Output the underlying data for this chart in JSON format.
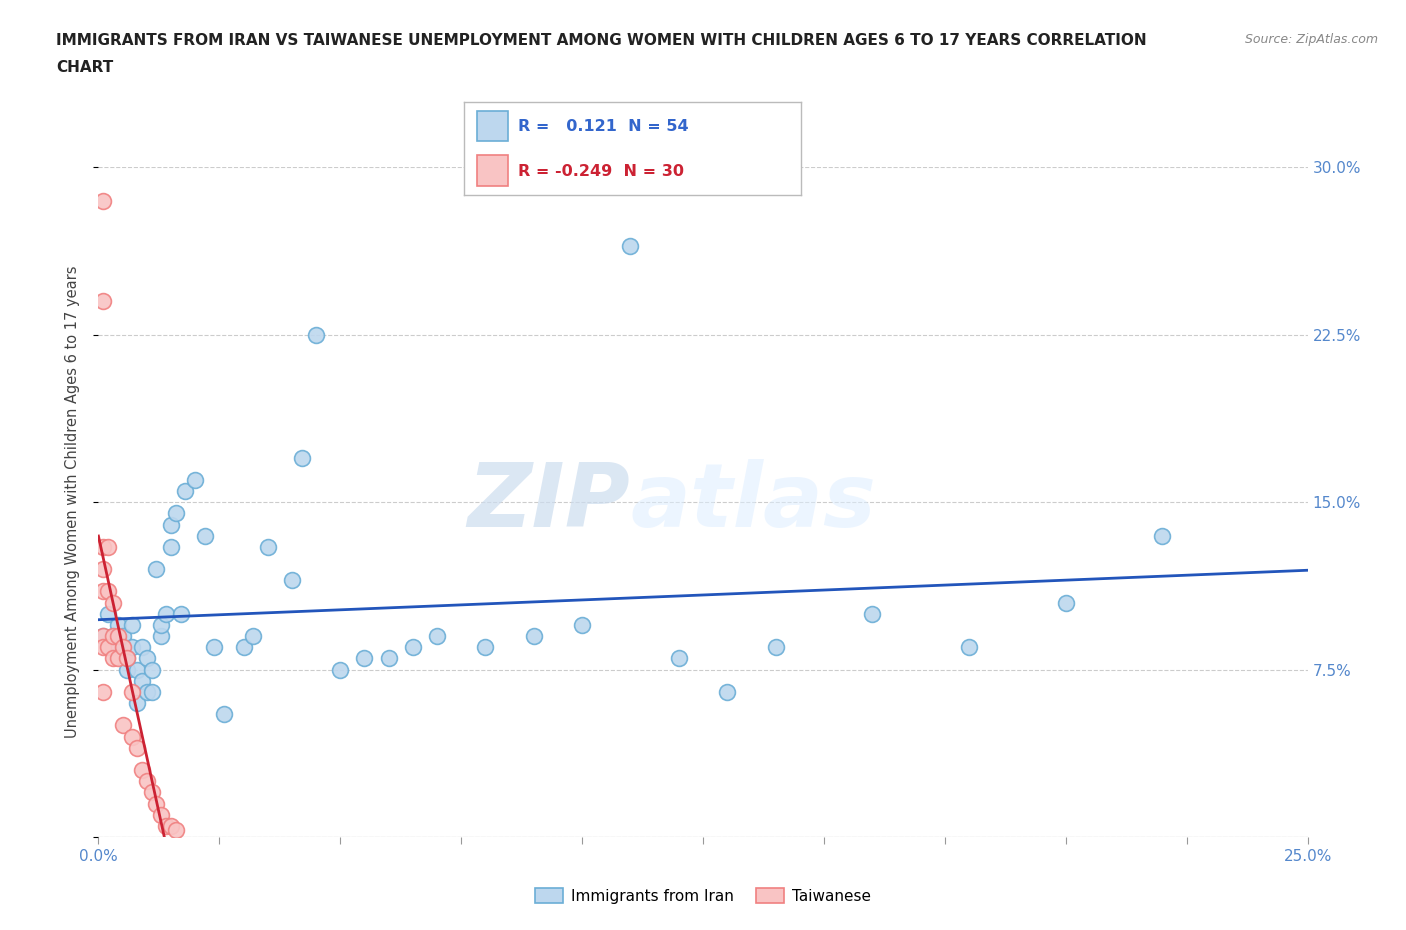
{
  "title_line1": "IMMIGRANTS FROM IRAN VS TAIWANESE UNEMPLOYMENT AMONG WOMEN WITH CHILDREN AGES 6 TO 17 YEARS CORRELATION",
  "title_line2": "CHART",
  "source": "Source: ZipAtlas.com",
  "ylabel": "Unemployment Among Women with Children Ages 6 to 17 years",
  "xlim": [
    0.0,
    0.25
  ],
  "ylim": [
    0.0,
    0.3
  ],
  "xticks": [
    0.0,
    0.025,
    0.05,
    0.075,
    0.1,
    0.125,
    0.15,
    0.175,
    0.2,
    0.225,
    0.25
  ],
  "xticklabels_show": [
    "0.0%",
    "",
    "",
    "",
    "",
    "",
    "",
    "",
    "",
    "",
    "25.0%"
  ],
  "yticks": [
    0.0,
    0.075,
    0.15,
    0.225,
    0.3
  ],
  "yticklabels_right": [
    "",
    "7.5%",
    "15.0%",
    "22.5%",
    "30.0%"
  ],
  "grid_color": "#cccccc",
  "background_color": "#ffffff",
  "iran_color_edge": "#6baed6",
  "iran_color_fill": "#bdd7ee",
  "taiwan_color_edge": "#f08080",
  "taiwan_color_fill": "#f9c4c4",
  "trend_iran_color": "#2255bb",
  "trend_taiwan_color": "#cc2233",
  "legend_R_iran": "0.121",
  "legend_N_iran": "54",
  "legend_R_taiwan": "-0.249",
  "legend_N_taiwan": "30",
  "watermark_zip": "ZIP",
  "watermark_atlas": "atlas",
  "iran_x": [
    0.001,
    0.002,
    0.003,
    0.003,
    0.004,
    0.005,
    0.005,
    0.006,
    0.006,
    0.007,
    0.007,
    0.008,
    0.008,
    0.009,
    0.009,
    0.01,
    0.01,
    0.011,
    0.011,
    0.012,
    0.013,
    0.013,
    0.014,
    0.015,
    0.015,
    0.016,
    0.017,
    0.018,
    0.02,
    0.022,
    0.024,
    0.026,
    0.03,
    0.032,
    0.035,
    0.04,
    0.042,
    0.045,
    0.05,
    0.055,
    0.06,
    0.065,
    0.07,
    0.08,
    0.09,
    0.1,
    0.11,
    0.12,
    0.13,
    0.14,
    0.16,
    0.18,
    0.2,
    0.22
  ],
  "iran_y": [
    0.09,
    0.1,
    0.085,
    0.09,
    0.095,
    0.085,
    0.09,
    0.075,
    0.08,
    0.085,
    0.095,
    0.06,
    0.075,
    0.07,
    0.085,
    0.065,
    0.08,
    0.065,
    0.075,
    0.12,
    0.09,
    0.095,
    0.1,
    0.13,
    0.14,
    0.145,
    0.1,
    0.155,
    0.16,
    0.135,
    0.085,
    0.055,
    0.085,
    0.09,
    0.13,
    0.115,
    0.17,
    0.225,
    0.075,
    0.08,
    0.08,
    0.085,
    0.09,
    0.085,
    0.09,
    0.095,
    0.265,
    0.08,
    0.065,
    0.085,
    0.1,
    0.085,
    0.105,
    0.135
  ],
  "taiwan_x": [
    0.001,
    0.001,
    0.001,
    0.001,
    0.001,
    0.001,
    0.001,
    0.001,
    0.002,
    0.002,
    0.002,
    0.003,
    0.003,
    0.003,
    0.004,
    0.004,
    0.005,
    0.005,
    0.006,
    0.007,
    0.007,
    0.008,
    0.009,
    0.01,
    0.011,
    0.012,
    0.013,
    0.014,
    0.015,
    0.016
  ],
  "taiwan_y": [
    0.285,
    0.24,
    0.13,
    0.12,
    0.11,
    0.09,
    0.085,
    0.065,
    0.13,
    0.11,
    0.085,
    0.105,
    0.09,
    0.08,
    0.09,
    0.08,
    0.085,
    0.05,
    0.08,
    0.065,
    0.045,
    0.04,
    0.03,
    0.025,
    0.02,
    0.015,
    0.01,
    0.005,
    0.005,
    0.003
  ]
}
